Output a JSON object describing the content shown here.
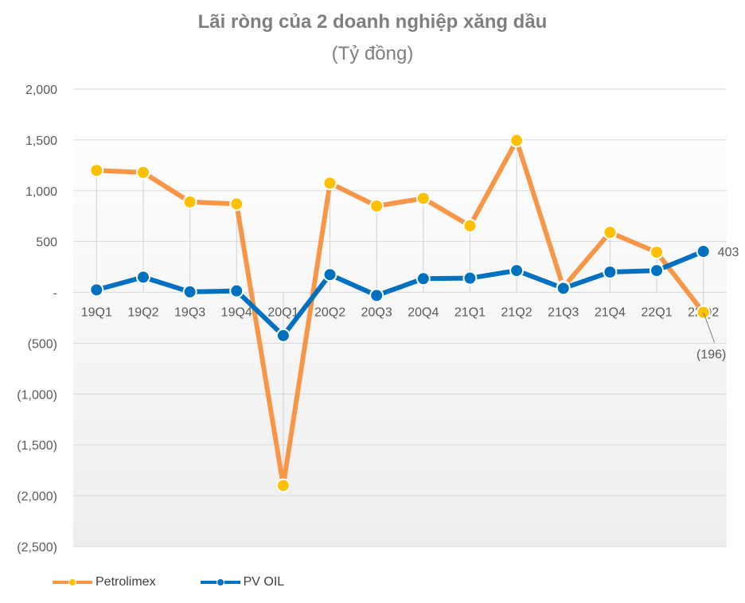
{
  "title": "Lãi ròng của 2 doanh nghiệp xăng dầu",
  "subtitle": "(Tỷ đồng)",
  "colors": {
    "petrolimex_line": "#f79646",
    "petrolimex_marker": "#ffc000",
    "pvoil": "#0070c0",
    "grid": "#d9d9d9",
    "axis_text": "#595959"
  },
  "chart_data": {
    "type": "line",
    "title": "Lãi ròng của 2 doanh nghiệp xăng dầu",
    "subtitle": "(Tỷ đồng)",
    "categories": [
      "19Q1",
      "19Q2",
      "19Q3",
      "19Q4",
      "20Q1",
      "20Q2",
      "20Q3",
      "20Q4",
      "21Q1",
      "21Q2",
      "21Q3",
      "21Q4",
      "22Q1",
      "22Q2"
    ],
    "series": [
      {
        "name": "Petrolimex",
        "values": [
          1200,
          1180,
          890,
          870,
          -1900,
          1075,
          850,
          925,
          655,
          1495,
          50,
          590,
          395,
          -196
        ]
      },
      {
        "name": "PV OIL",
        "values": [
          25,
          150,
          5,
          15,
          -425,
          175,
          -30,
          135,
          140,
          215,
          40,
          200,
          215,
          403
        ]
      }
    ],
    "yticks": [
      2000,
      1500,
      1000,
      500,
      0,
      -500,
      -1000,
      -1500,
      -2000,
      -2500
    ],
    "ytick_labels": [
      "2,000",
      "1,500",
      "1,000",
      "500",
      "-",
      "(500)",
      "(1,000)",
      "(1,500)",
      "(2,000)",
      "(2,500)"
    ],
    "ylim": [
      -2500,
      2000
    ],
    "annotations": [
      {
        "series": "PV OIL",
        "category": "22Q2",
        "label": "403"
      },
      {
        "series": "Petrolimex",
        "category": "22Q2",
        "label": "(196)"
      }
    ],
    "grid": true,
    "legend": "bottom-left"
  }
}
